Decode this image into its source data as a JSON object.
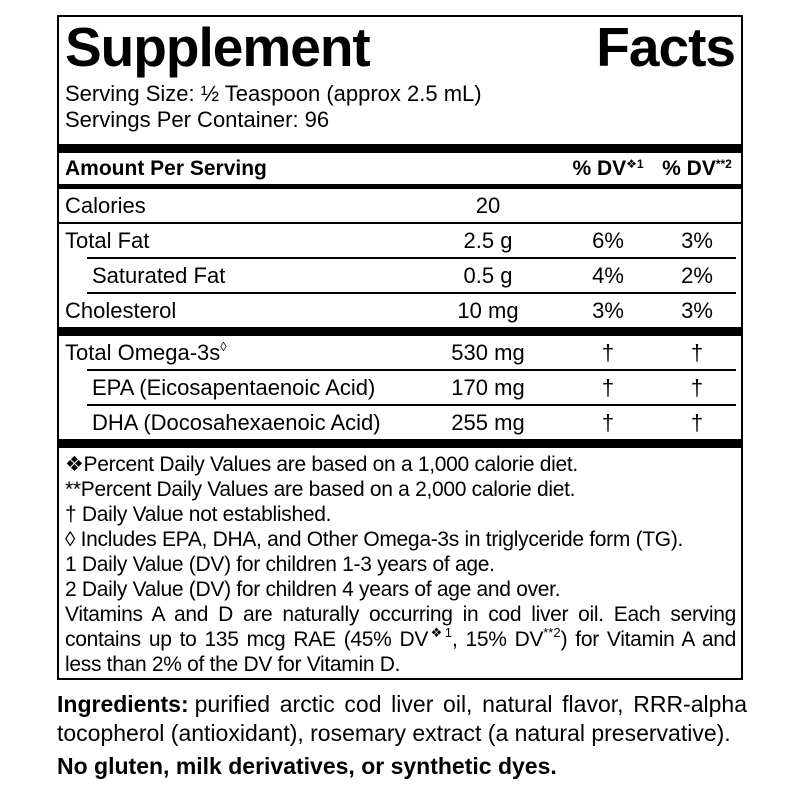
{
  "page": {
    "background_color": "#ffffff",
    "text_color": "#000000"
  },
  "label": {
    "title": "Supplement Facts",
    "serving_size": "Serving Size: ½ Teaspoon (approx 2.5 mL)",
    "servings_per_container": "Servings Per Container: 96",
    "table": {
      "header": {
        "amount_label": "Amount Per Serving",
        "dv1_base": "% DV",
        "dv1_sup": "❖1",
        "dv2_base": "% DV",
        "dv2_sup": "**2"
      },
      "rows": [
        {
          "name": "Calories",
          "amount": "20",
          "dv1": "",
          "dv2": ""
        },
        {
          "name": "Total Fat",
          "amount": "2.5 g",
          "dv1": "6%",
          "dv2": "3%"
        },
        {
          "name": "Saturated Fat",
          "amount": "0.5 g",
          "dv1": "4%",
          "dv2": "2%"
        },
        {
          "name": "Cholesterol",
          "amount": "10 mg",
          "dv1": "3%",
          "dv2": "3%"
        },
        {
          "name": "Total Omega-3s",
          "name_sup": "◊",
          "amount": "530 mg",
          "dv1": "†",
          "dv2": "†"
        },
        {
          "name": "EPA (Eicosapentaenoic Acid)",
          "amount": "170 mg",
          "dv1": "†",
          "dv2": "†"
        },
        {
          "name": "DHA (Docosahexaenoic Acid)",
          "amount": "255 mg",
          "dv1": "†",
          "dv2": "†"
        }
      ]
    },
    "footnotes": [
      "❖Percent Daily Values are based on a 1,000 calorie diet.",
      "**Percent Daily Values are based on a 2,000 calorie diet.",
      "† Daily Value not established.",
      "◊ Includes EPA, DHA, and Other Omega-3s in triglyceride form (TG).",
      "1 Daily Value (DV) for children 1-3 years of age.",
      "2 Daily Value (DV) for children 4 years of age and over."
    ],
    "vitamins_note": {
      "part1": "Vitamins A and D are naturally occurring in cod liver oil. Each serving contains up to 135 mcg RAE (45% DV",
      "sup1": "❖1",
      "part2": ", 15% DV",
      "sup2": "**2",
      "part3": ") for Vitamin A and less than 2% of the DV for Vitamin D."
    }
  },
  "ingredients": {
    "label": "Ingredients:",
    "text": "purified arctic cod liver oil, natural flavor, RRR-alpha tocopherol (antioxidant), rosemary extract (a natural preservative)."
  },
  "claim": "No gluten, milk derivatives, or synthetic dyes."
}
